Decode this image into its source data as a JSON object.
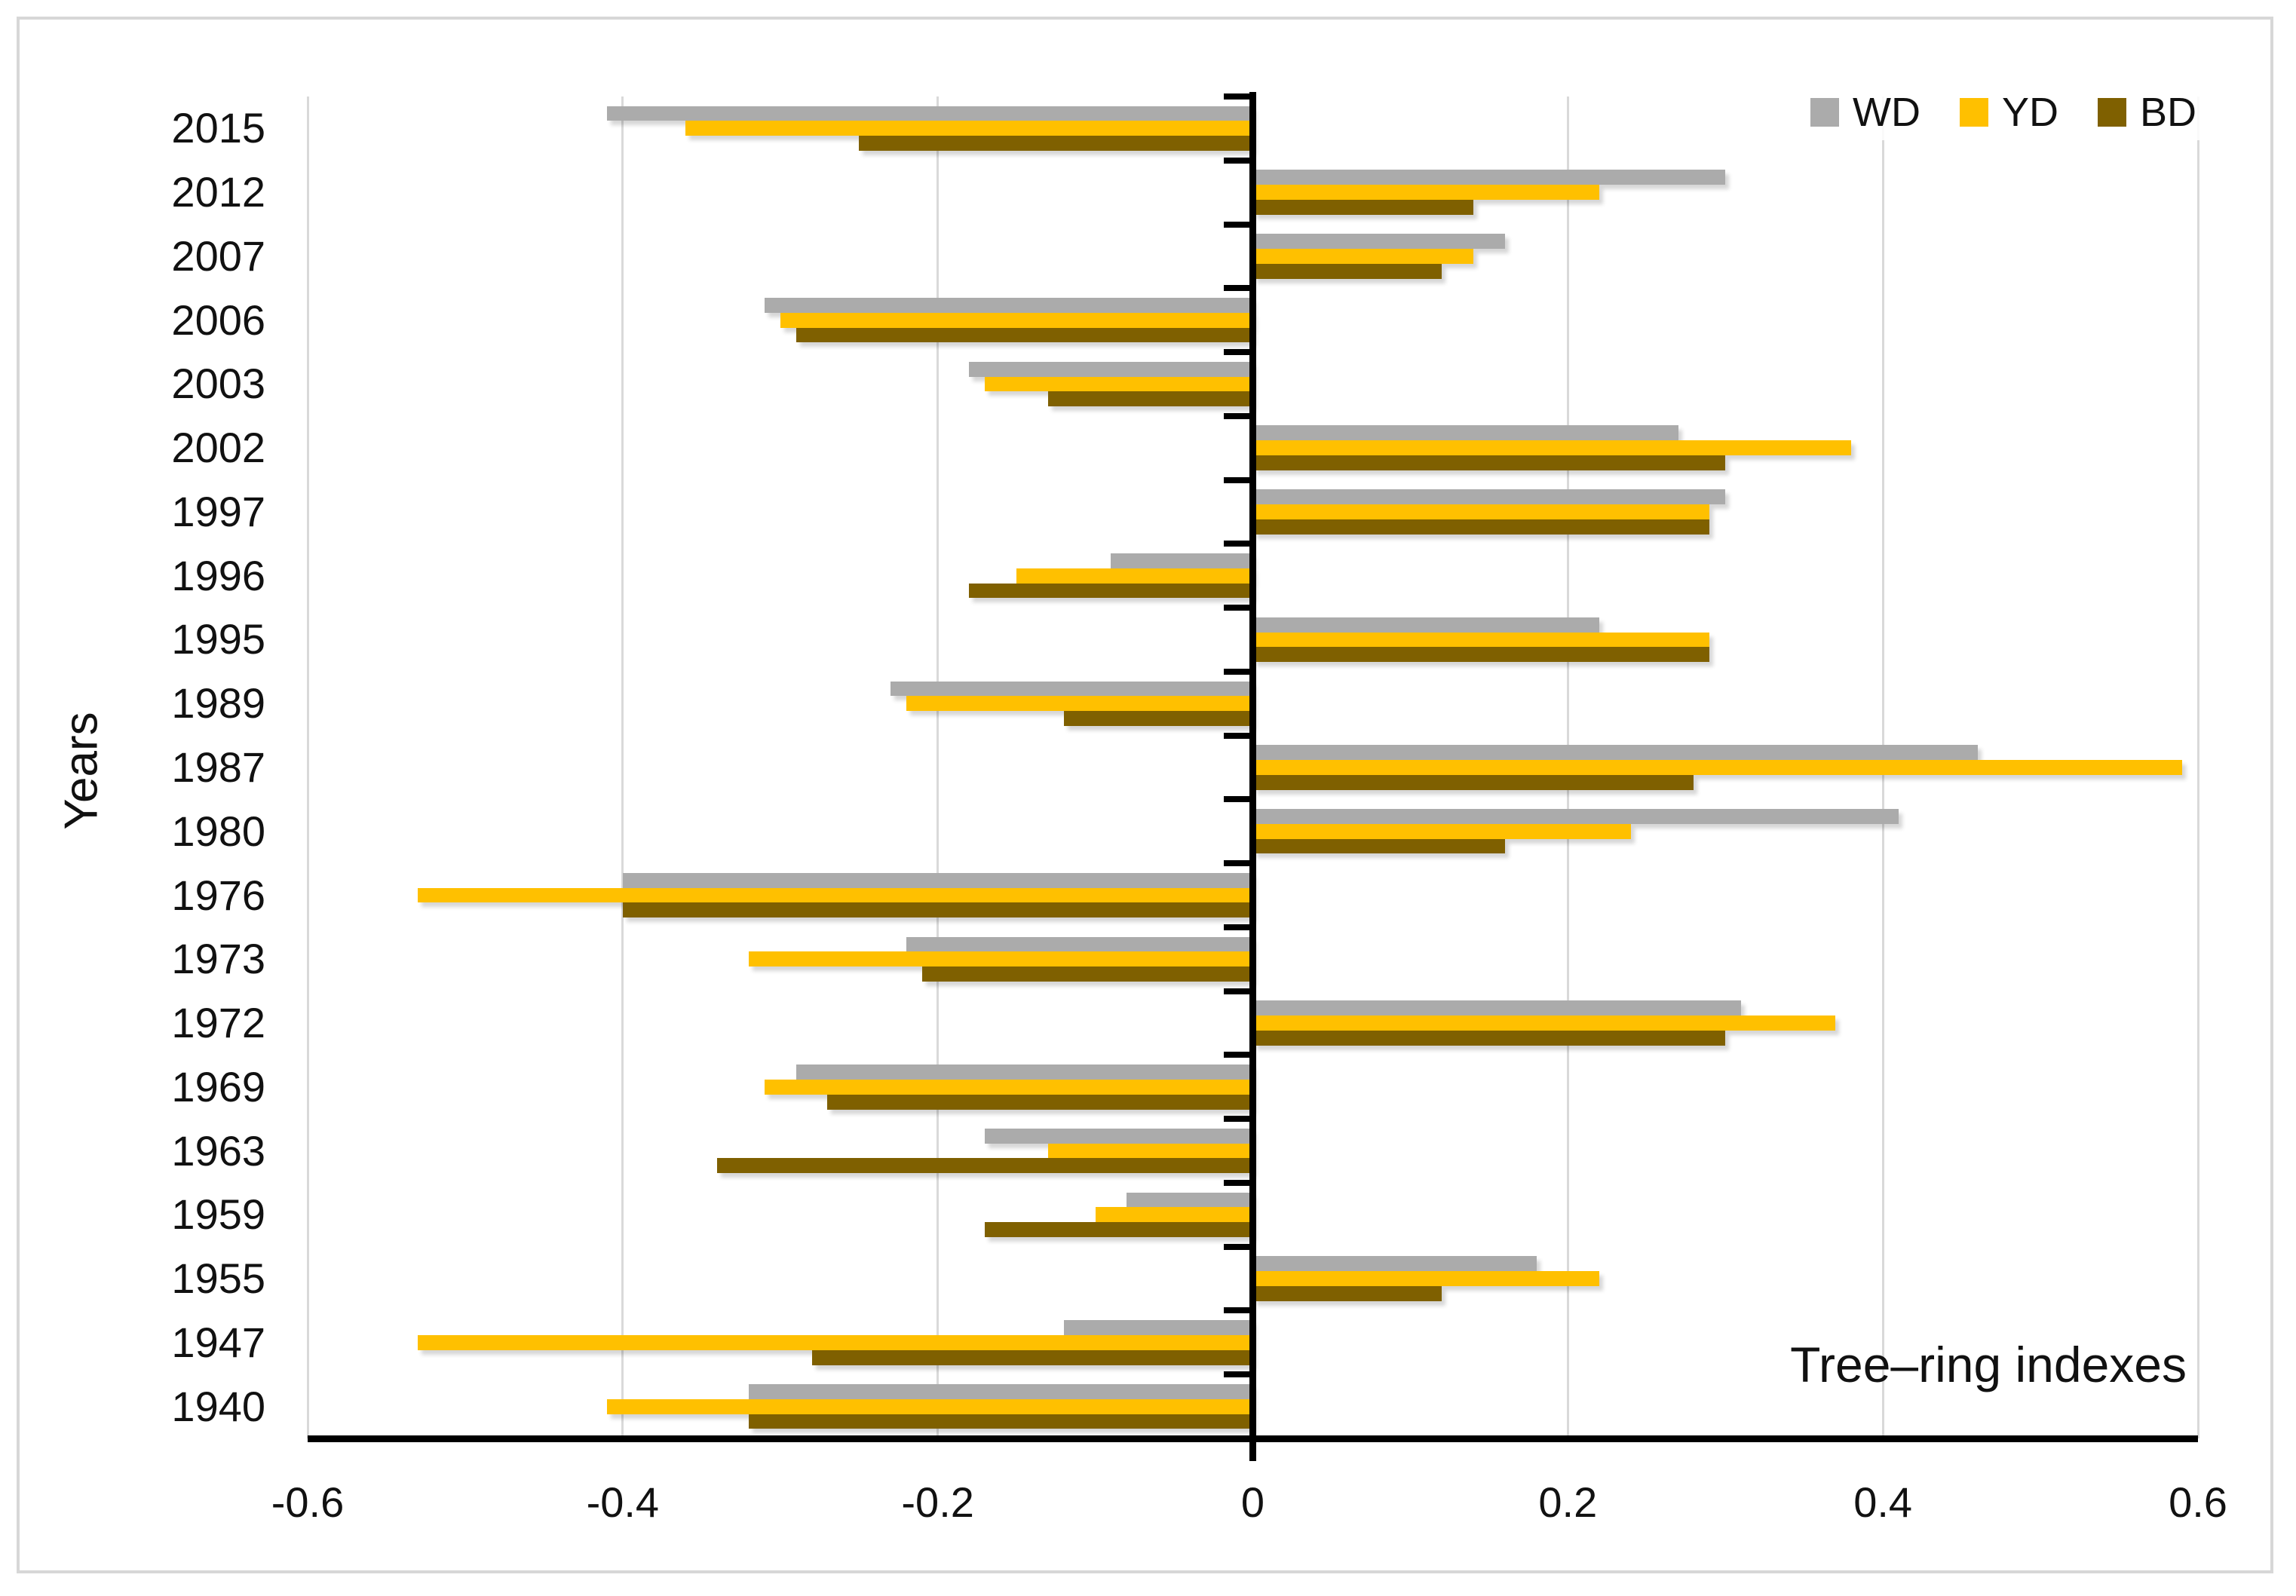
{
  "figure": {
    "background": "#ffffff",
    "border_color": "#d7d7d7"
  },
  "chart_data": {
    "type": "bar",
    "orientation": "horizontal",
    "title": "",
    "xlabel": "Tree–ring indexes",
    "ylabel": "Years",
    "xlim": [
      -0.6,
      0.6
    ],
    "x_ticks": [
      -0.6,
      -0.4,
      -0.2,
      0,
      0.2,
      0.4,
      0.6
    ],
    "x_tick_labels": [
      "-0.6",
      "-0.4",
      "-0.2",
      "0",
      "0.2",
      "0.4",
      "0.6"
    ],
    "grid": "vertical",
    "gridline_color": "#d9d9d9",
    "axis_color": "#000000",
    "legend_position": "top-right",
    "categories": [
      "2015",
      "2012",
      "2007",
      "2006",
      "2003",
      "2002",
      "1997",
      "1996",
      "1995",
      "1989",
      "1987",
      "1980",
      "1976",
      "1973",
      "1972",
      "1969",
      "1963",
      "1959",
      "1955",
      "1947",
      "1940"
    ],
    "series": [
      {
        "name": "WD",
        "color": "#ababab",
        "values": [
          -0.41,
          0.3,
          0.16,
          -0.31,
          -0.18,
          0.27,
          0.3,
          -0.09,
          0.22,
          -0.23,
          0.46,
          0.41,
          -0.4,
          -0.22,
          0.31,
          -0.29,
          -0.17,
          -0.08,
          0.18,
          -0.12,
          -0.32
        ]
      },
      {
        "name": "YD",
        "color": "#ffc000",
        "values": [
          -0.36,
          0.22,
          0.14,
          -0.3,
          -0.17,
          0.38,
          0.29,
          -0.15,
          0.29,
          -0.22,
          0.59,
          0.24,
          -0.53,
          -0.32,
          0.37,
          -0.31,
          -0.13,
          -0.1,
          0.22,
          -0.53,
          -0.41
        ]
      },
      {
        "name": "BD",
        "color": "#7f6000",
        "values": [
          -0.25,
          0.14,
          0.12,
          -0.29,
          -0.13,
          0.3,
          0.29,
          -0.18,
          0.29,
          -0.12,
          0.28,
          0.16,
          -0.4,
          -0.21,
          0.3,
          -0.27,
          -0.34,
          -0.17,
          0.12,
          -0.28,
          -0.32
        ]
      }
    ]
  }
}
